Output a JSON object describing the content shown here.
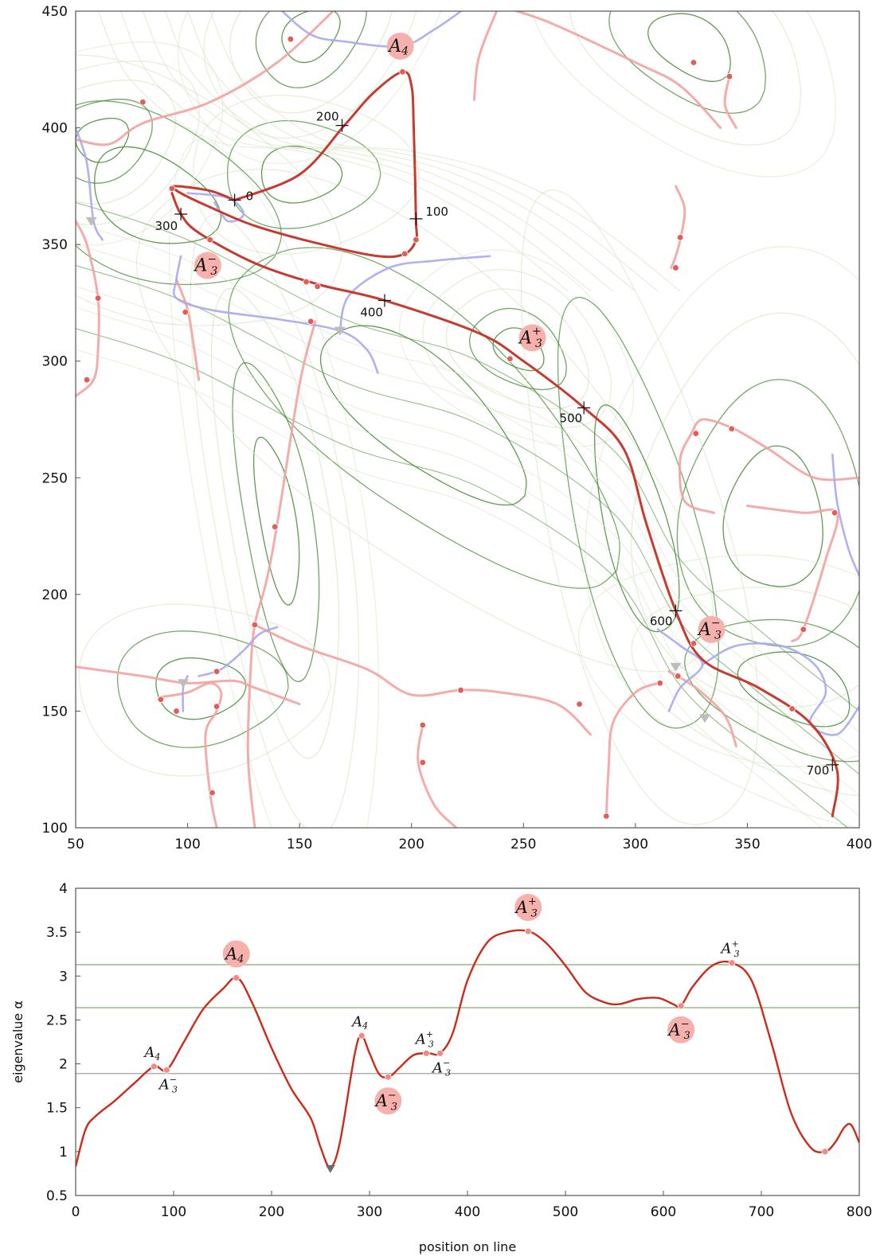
{
  "chart_data": [
    {
      "type": "contour-map",
      "xlim": [
        50,
        400
      ],
      "ylim": [
        100,
        450
      ],
      "x_ticks": [
        "50",
        "100",
        "150",
        "200",
        "250",
        "300",
        "350",
        "400"
      ],
      "y_ticks": [
        "100",
        "150",
        "200",
        "250",
        "300",
        "350",
        "400",
        "450"
      ],
      "grid": false,
      "colors": {
        "contour_dark": "#4f8f3c",
        "contour_light": "#d8e6c6",
        "ridge_main": "#c63a30",
        "ridge_light": "#f2a3a0",
        "valley": "#a8a8f0",
        "marker": "#e35c55",
        "badge": "#f6b1ad"
      },
      "line_position_labels": [
        {
          "text": "0",
          "x": 121,
          "y": 369
        },
        {
          "text": "100",
          "x": 202,
          "y": 361
        },
        {
          "text": "200",
          "x": 169,
          "y": 401
        },
        {
          "text": "300",
          "x": 97,
          "y": 363
        },
        {
          "text": "400",
          "x": 188,
          "y": 326
        },
        {
          "text": "500",
          "x": 277,
          "y": 280
        },
        {
          "text": "600",
          "x": 318,
          "y": 193
        },
        {
          "text": "700",
          "x": 388,
          "y": 127
        }
      ],
      "fold_badges": [
        {
          "base": "A",
          "sub": "4",
          "sup": "",
          "x": 195,
          "y": 435
        },
        {
          "base": "A",
          "sub": "3",
          "sup": "−",
          "x": 109,
          "y": 341
        },
        {
          "base": "A",
          "sub": "3",
          "sup": "+",
          "x": 254,
          "y": 310
        },
        {
          "base": "A",
          "sub": "3",
          "sup": "−",
          "x": 334,
          "y": 185
        }
      ]
    },
    {
      "type": "line",
      "xlabel": "position on line",
      "ylabel": "eigenvalue α",
      "xlim": [
        0,
        800
      ],
      "ylim": [
        0.5,
        4
      ],
      "x_ticks": [
        "0",
        "100",
        "200",
        "300",
        "400",
        "500",
        "600",
        "700",
        "800"
      ],
      "y_ticks": [
        "0.5",
        "1",
        "1.5",
        "2",
        "2.5",
        "3",
        "3.5",
        "4"
      ],
      "reference_lines": [
        {
          "y": 3.13,
          "color": "#8fbf7f"
        },
        {
          "y": 2.64,
          "color": "#8fbf7f"
        },
        {
          "y": 1.89,
          "color": "#b0b0b0"
        }
      ],
      "series": [
        {
          "color": "#cc2a1a",
          "x": [
            0,
            10,
            20,
            40,
            60,
            80,
            93,
            110,
            130,
            150,
            165,
            180,
            200,
            220,
            240,
            250,
            260,
            270,
            285,
            292,
            300,
            310,
            320,
            330,
            345,
            360,
            372,
            385,
            400,
            420,
            440,
            462,
            480,
            500,
            520,
            540,
            555,
            575,
            595,
            610,
            618,
            630,
            650,
            670,
            690,
            710,
            730,
            750,
            765,
            775,
            785,
            792,
            800
          ],
          "y": [
            0.83,
            1.25,
            1.4,
            1.58,
            1.78,
            1.97,
            1.93,
            2.24,
            2.62,
            2.85,
            2.98,
            2.7,
            2.18,
            1.72,
            1.38,
            1.05,
            0.82,
            1.12,
            2.12,
            2.32,
            2.12,
            1.88,
            1.85,
            1.95,
            2.1,
            2.12,
            2.12,
            2.35,
            2.95,
            3.38,
            3.5,
            3.51,
            3.38,
            3.12,
            2.82,
            2.7,
            2.68,
            2.74,
            2.75,
            2.68,
            2.66,
            2.88,
            3.12,
            3.15,
            2.95,
            2.25,
            1.45,
            1.05,
            1.0,
            1.1,
            1.28,
            1.3,
            1.1
          ]
        }
      ],
      "fold_markers": [
        {
          "base": "A",
          "sub": "4",
          "sup": "",
          "x": 80,
          "y": 1.97,
          "label_pos": "above",
          "badge": false
        },
        {
          "base": "A",
          "sub": "3",
          "sup": "−",
          "x": 93,
          "y": 1.93,
          "label_pos": "below",
          "badge": false
        },
        {
          "base": "A",
          "sub": "4",
          "sup": "",
          "x": 164,
          "y": 2.98,
          "label_pos": "above",
          "badge": true
        },
        {
          "base": "A",
          "sub": "4",
          "sup": "",
          "x": 292,
          "y": 2.32,
          "label_pos": "above",
          "badge": false
        },
        {
          "base": "A",
          "sub": "3",
          "sup": "−",
          "x": 319,
          "y": 1.85,
          "label_pos": "below",
          "badge": true
        },
        {
          "base": "A",
          "sub": "3",
          "sup": "+",
          "x": 358,
          "y": 2.12,
          "label_pos": "above",
          "badge": false
        },
        {
          "base": "A",
          "sub": "3",
          "sup": "−",
          "x": 372,
          "y": 2.12,
          "label_pos": "below",
          "badge": false
        },
        {
          "base": "A",
          "sub": "3",
          "sup": "+",
          "x": 462,
          "y": 3.51,
          "label_pos": "above",
          "badge": true
        },
        {
          "base": "A",
          "sub": "3",
          "sup": "−",
          "x": 618,
          "y": 2.66,
          "label_pos": "below",
          "badge": true
        },
        {
          "base": "A",
          "sub": "3",
          "sup": "+",
          "x": 670,
          "y": 3.15,
          "label_pos": "above",
          "badge": false
        }
      ],
      "minimum_marker": {
        "x": 260,
        "y": 0.82
      },
      "endpoint_marker": {
        "x": 765,
        "y": 1.0
      }
    }
  ]
}
